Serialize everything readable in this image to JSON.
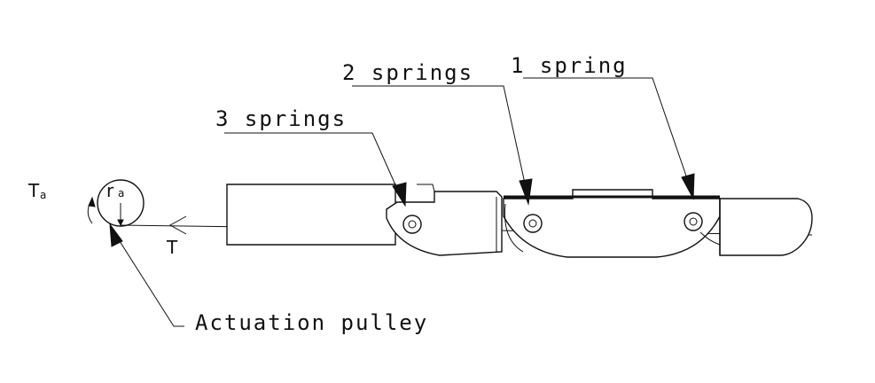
{
  "labels": {
    "three_springs": "3 springs",
    "two_springs": "2 springs",
    "one_spring": "1 spring",
    "actuation_pulley": "Actuation pulley",
    "torque_symbol": "T",
    "torque_subscript": "a",
    "radius_symbol": "r",
    "radius_subscript": "a",
    "tension": "T"
  }
}
